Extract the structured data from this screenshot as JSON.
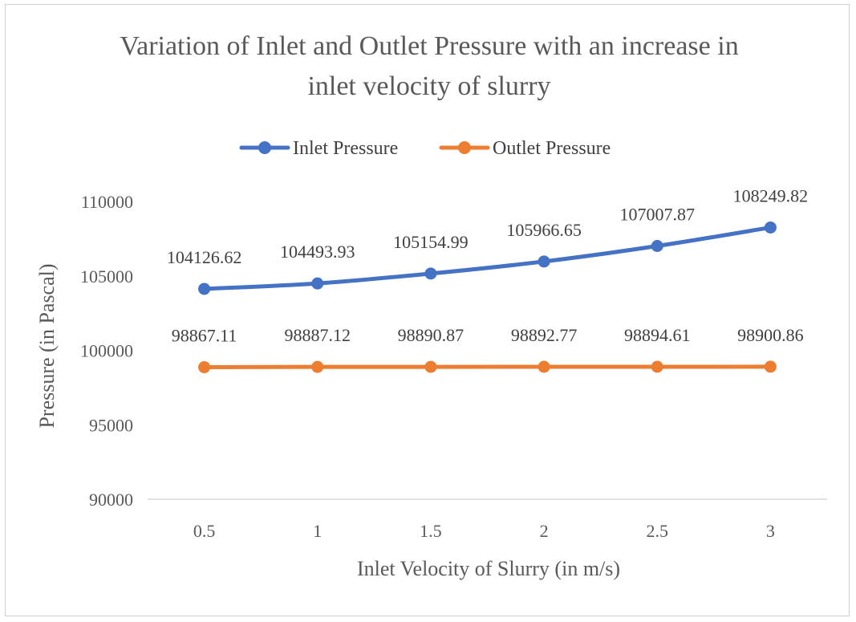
{
  "chart_data": {
    "type": "line",
    "title_lines": [
      "Variation of Inlet and Outlet Pressure with an increase in",
      "inlet velocity of slurry"
    ],
    "xlabel": "Inlet Velocity of Slurry (in m/s)",
    "ylabel": "Pressure (in Pascal)",
    "categories": [
      "0.5",
      "1",
      "1.5",
      "2",
      "2.5",
      "3"
    ],
    "ylim": [
      90000,
      110000
    ],
    "yticks": [
      90000,
      95000,
      100000,
      105000,
      110000
    ],
    "grid": false,
    "legend_position": "top",
    "series": [
      {
        "name": "Inlet Pressure",
        "color": "#4472C4",
        "values": [
          104126.62,
          104493.93,
          105154.99,
          105966.65,
          107007.87,
          108249.82
        ],
        "labels": [
          "104126.62",
          "104493.93",
          "105154.99",
          "105966.65",
          "107007.87",
          "108249.82"
        ]
      },
      {
        "name": "Outlet Pressure",
        "color": "#ED7D31",
        "values": [
          98867.11,
          98887.12,
          98890.87,
          98892.77,
          98894.61,
          98900.86
        ],
        "labels": [
          "98867.11",
          "98887.12",
          "98890.87",
          "98892.77",
          "98894.61",
          "98900.86"
        ]
      }
    ]
  }
}
